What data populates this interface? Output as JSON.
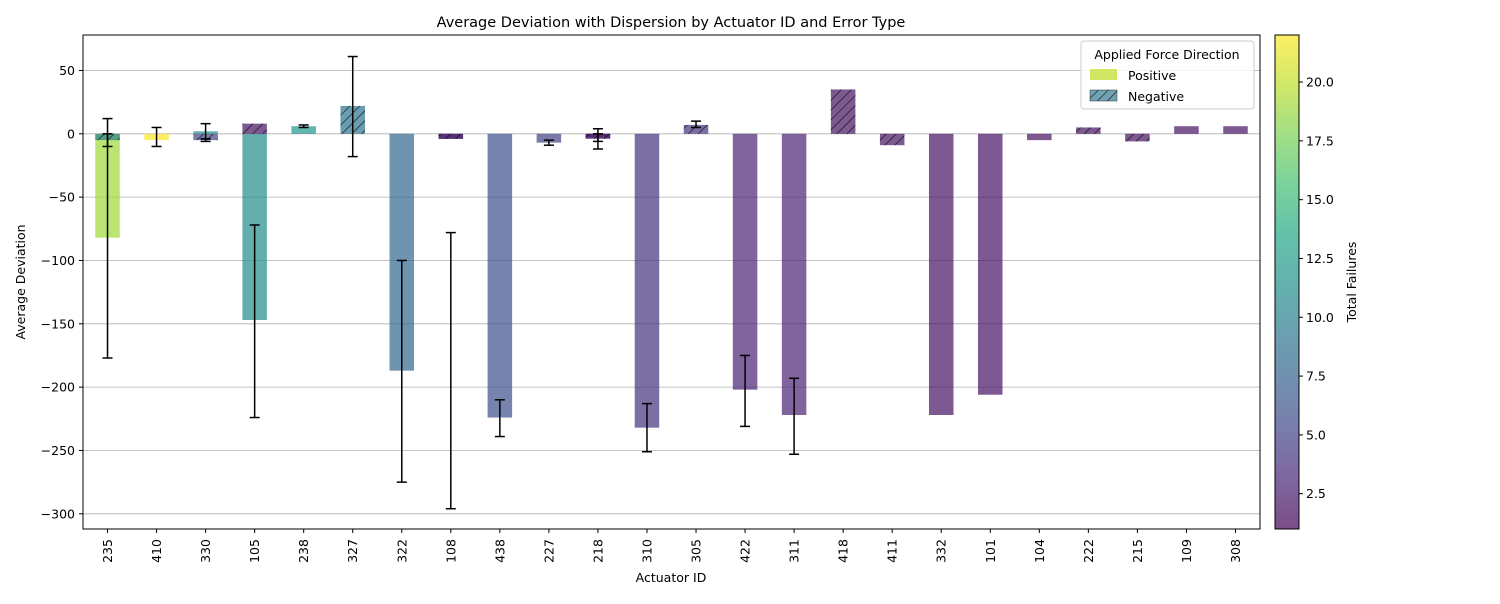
{
  "chart_data": {
    "type": "bar",
    "title": "Average Deviation with Dispersion by Actuator ID and Error Type",
    "xlabel": "Actuator ID",
    "ylabel": "Average Deviation",
    "ylim": [
      -312,
      78
    ],
    "yticks": [
      50,
      0,
      -50,
      -100,
      -150,
      -200,
      -250,
      -300
    ],
    "yticks_labels": [
      "50",
      "0",
      "−50",
      "−100",
      "−150",
      "−200",
      "−250",
      "−300"
    ],
    "grid": "horizontal",
    "categories": [
      "235",
      "410",
      "330",
      "105",
      "238",
      "327",
      "322",
      "108",
      "438",
      "227",
      "218",
      "310",
      "305",
      "422",
      "311",
      "418",
      "411",
      "332",
      "101",
      "104",
      "222",
      "215",
      "109",
      "308"
    ],
    "series": [
      {
        "name": "Positive",
        "hatch": false,
        "values": [
          -82,
          -5,
          2,
          -147,
          6,
          null,
          -187,
          -4,
          -224,
          -7,
          -3,
          -232,
          null,
          -202,
          -222,
          null,
          null,
          -222,
          -206,
          -5,
          null,
          null,
          6,
          6
        ],
        "err_low": [
          -177,
          -10,
          -4,
          -224,
          5,
          null,
          -275,
          -296,
          -239,
          -9,
          -6,
          -251,
          null,
          -231,
          -253,
          null,
          null,
          null,
          null,
          null,
          null,
          null,
          null,
          null
        ],
        "err_high": [
          12,
          5,
          8,
          -72,
          7,
          null,
          -100,
          -78,
          -210,
          -5,
          0,
          -213,
          null,
          -175,
          -193,
          null,
          null,
          null,
          null,
          null,
          null,
          null,
          null,
          null
        ],
        "failures": [
          19,
          22,
          12,
          11,
          12,
          null,
          8,
          5,
          6,
          5,
          2,
          4,
          null,
          3,
          3,
          null,
          null,
          2,
          2,
          2,
          null,
          null,
          2,
          2
        ]
      },
      {
        "name": "Negative",
        "hatch": true,
        "values": [
          -5,
          null,
          -5,
          8,
          null,
          22,
          null,
          -4,
          null,
          null,
          -4,
          null,
          7,
          null,
          null,
          35,
          -9,
          null,
          null,
          null,
          5,
          -6,
          null,
          null
        ],
        "err_low": [
          -10,
          null,
          -6,
          null,
          null,
          -18,
          null,
          null,
          null,
          null,
          -12,
          null,
          5,
          null,
          null,
          null,
          null,
          null,
          null,
          null,
          null,
          null,
          null,
          null
        ],
        "err_high": [
          0,
          null,
          -4,
          null,
          null,
          61,
          null,
          null,
          null,
          null,
          4,
          null,
          10,
          null,
          null,
          null,
          null,
          null,
          null,
          null,
          null,
          null,
          null,
          null
        ],
        "failures": [
          10,
          null,
          5,
          2,
          null,
          9,
          null,
          2,
          null,
          null,
          2,
          null,
          4,
          null,
          null,
          2,
          2,
          null,
          null,
          null,
          2,
          2,
          null,
          null
        ]
      }
    ],
    "legend": {
      "title": "Applied Force Direction",
      "placement": "top-right",
      "entries": [
        "Positive",
        "Negative"
      ],
      "swatch_colors": [
        "#d2e564",
        "#6fa3b1"
      ]
    },
    "colorbar": {
      "label": "Total Failures",
      "cmap": "viridis",
      "range": [
        1,
        22
      ],
      "ticks": [
        2.5,
        5.0,
        7.5,
        10.0,
        12.5,
        15.0,
        17.5,
        20.0
      ],
      "tick_labels": [
        "2.5",
        "5.0",
        "7.5",
        "10.0",
        "12.5",
        "15.0",
        "17.5",
        "20.0"
      ]
    },
    "bar_alpha": 0.7
  }
}
